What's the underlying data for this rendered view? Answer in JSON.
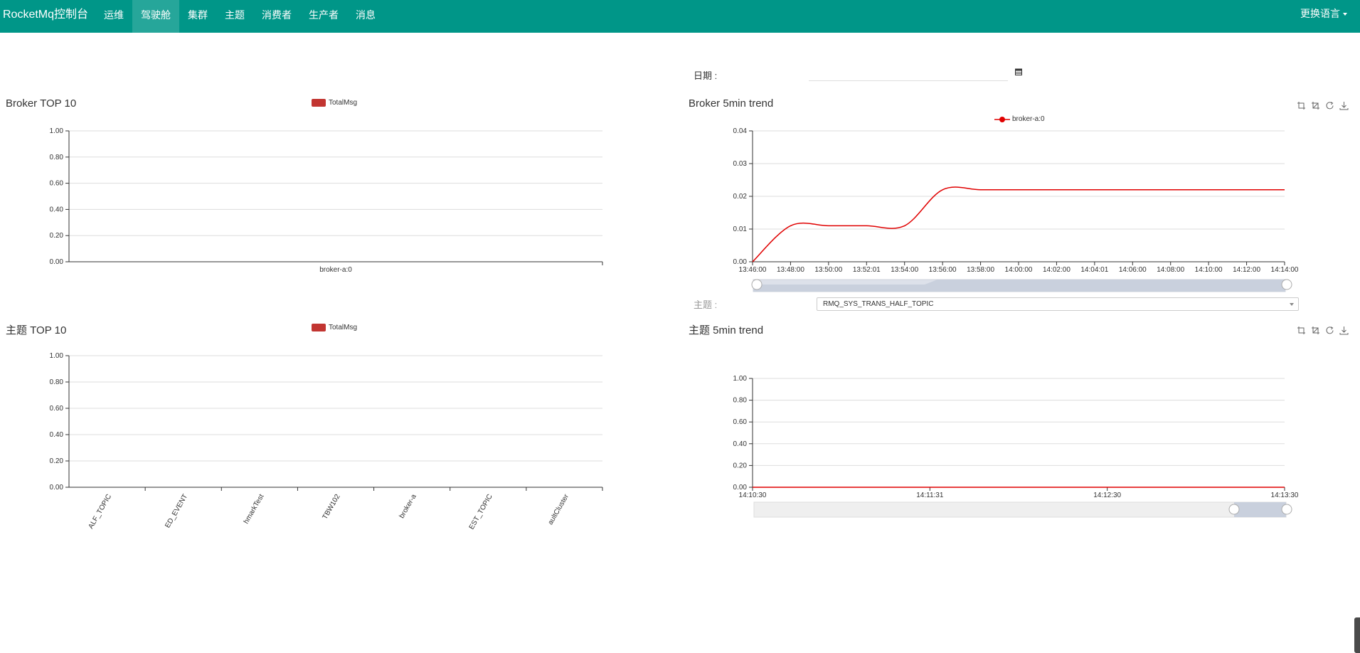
{
  "nav": {
    "brand": "RocketMq控制台",
    "items": [
      "运维",
      "驾驶舱",
      "集群",
      "主题",
      "消费者",
      "生产者",
      "消息"
    ],
    "active_index": 1,
    "language": "更换语言"
  },
  "date_filter": {
    "label": "日期 :",
    "value": ""
  },
  "broker_top10": {
    "title": "Broker TOP 10",
    "legend": "TotalMsg",
    "chart_data": {
      "type": "bar",
      "categories": [
        "broker-a:0"
      ],
      "series": [
        {
          "name": "TotalMsg",
          "values": [
            0
          ]
        }
      ],
      "ylim": [
        0,
        1
      ],
      "yticks": [
        "1.00",
        "0.80",
        "0.60",
        "0.40",
        "0.20",
        "0.00"
      ],
      "color": "#c23531"
    }
  },
  "broker_trend": {
    "title": "Broker 5min trend",
    "legend": "broker-a:0",
    "chart_data": {
      "type": "line",
      "x": [
        "13:46:00",
        "13:48:00",
        "13:50:00",
        "13:52:01",
        "13:54:00",
        "13:56:00",
        "13:58:00",
        "14:00:00",
        "14:02:00",
        "14:04:01",
        "14:06:00",
        "14:08:00",
        "14:10:00",
        "14:12:00",
        "14:14:00"
      ],
      "series": [
        {
          "name": "broker-a:0",
          "values": [
            0.0,
            0.011,
            0.011,
            0.011,
            0.011,
            0.022,
            0.022,
            0.022,
            0.022,
            0.022,
            0.022,
            0.022,
            0.022,
            0.022,
            0.022
          ]
        }
      ],
      "ylim": [
        0,
        0.04
      ],
      "yticks": [
        "0.04",
        "0.03",
        "0.02",
        "0.01",
        "0.00"
      ],
      "color": "#e00000"
    }
  },
  "topic_filter": {
    "label": "主题 :",
    "selected": "RMQ_SYS_TRANS_HALF_TOPIC"
  },
  "topic_top10": {
    "title": "主题 TOP 10",
    "legend": "TotalMsg",
    "chart_data": {
      "type": "bar",
      "categories": [
        "ALF_TOPIC",
        "ED_EVENT",
        "hmarkTest",
        "TBW102",
        "broker-a",
        "EST_TOPIC",
        "aultCluster"
      ],
      "series": [
        {
          "name": "TotalMsg",
          "values": [
            0,
            0,
            0,
            0,
            0,
            0,
            0
          ]
        }
      ],
      "ylim": [
        0,
        1
      ],
      "yticks": [
        "1.00",
        "0.80",
        "0.60",
        "0.40",
        "0.20",
        "0.00"
      ],
      "color": "#c23531"
    }
  },
  "topic_trend": {
    "title": "主题 5min trend",
    "chart_data": {
      "type": "line",
      "x": [
        "14:10:30",
        "14:11:31",
        "14:12:30",
        "14:13:30"
      ],
      "series": [
        {
          "values": [
            0,
            0,
            0,
            0
          ]
        }
      ],
      "ylim": [
        0,
        1
      ],
      "yticks": [
        "1.00",
        "0.80",
        "0.60",
        "0.40",
        "0.20",
        "0.00"
      ],
      "color": "#e00000"
    }
  },
  "icons": {
    "toolbox": [
      "zoom-icon",
      "zoom-reset-icon",
      "restore-icon",
      "download-icon"
    ],
    "calendar": "calendar-icon"
  }
}
